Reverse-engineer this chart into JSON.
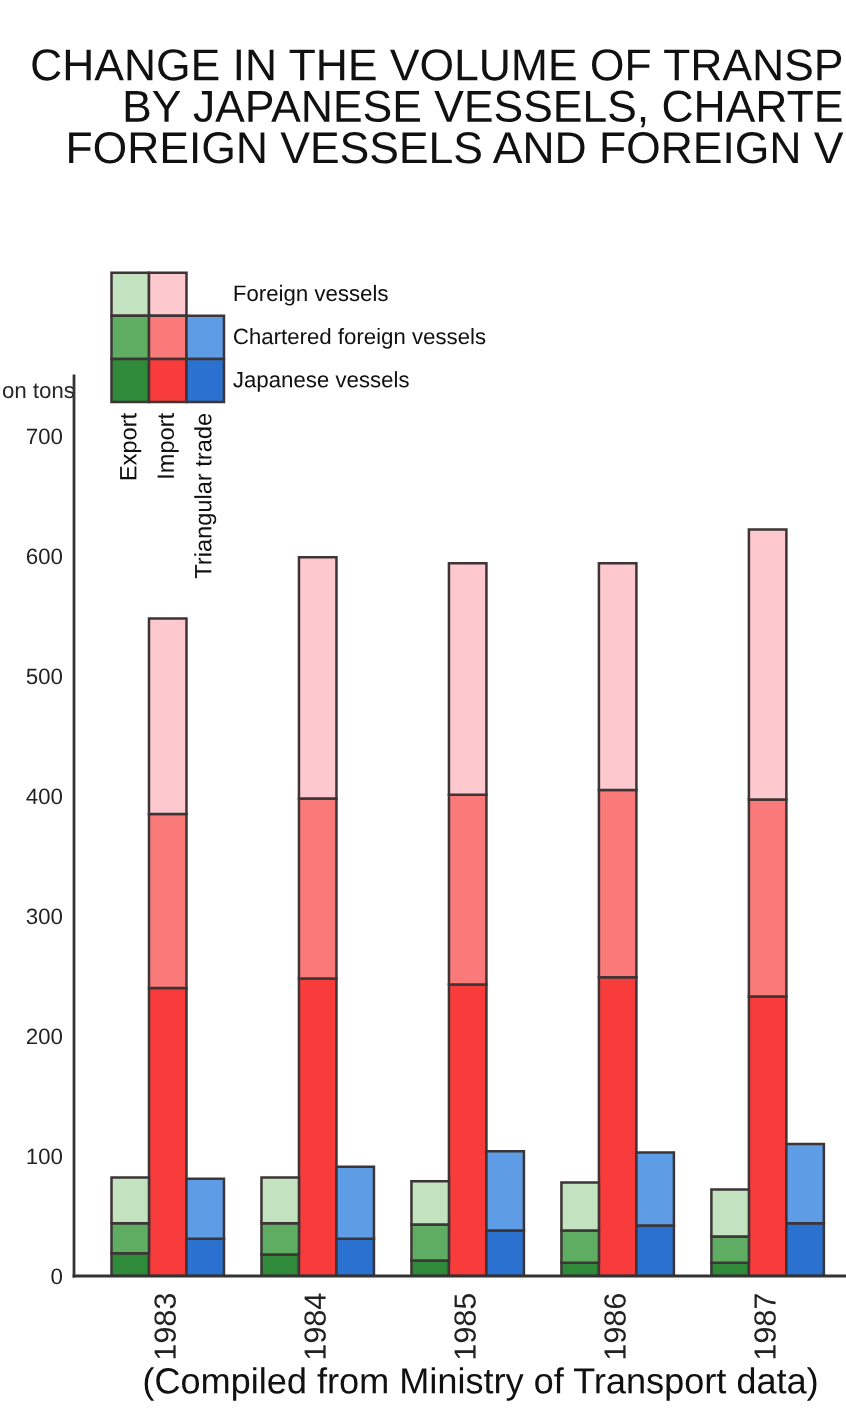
{
  "chart_data": {
    "type": "bar",
    "stacked": true,
    "title": "CHANGE IN THE VOLUME OF TRANSP\nBY JAPANESE VESSELS, CHARTE\nFOREIGN VESSELS AND FOREIGN V",
    "ylabel": "on tons",
    "categories": [
      null,
      null,
      "1983",
      null,
      null,
      null,
      "1984",
      null,
      null,
      null,
      "1985",
      null,
      null,
      null,
      "1986",
      null,
      null,
      null,
      "1987",
      null
    ],
    "series": [
      {
        "name": "Japanese vessels",
        "values": [
          null,
          19,
          240,
          31,
          null,
          18,
          248,
          31,
          null,
          13,
          243,
          38,
          null,
          11,
          249,
          42,
          null,
          11,
          233,
          44
        ],
        "colors": [
          null,
          "#2f8a3a",
          "#f83b3b",
          "#2b72d0",
          null,
          "#2f8a3a",
          "#f83b3b",
          "#2b72d0",
          null,
          "#2f8a3a",
          "#f83b3b",
          "#2b72d0",
          null,
          "#2f8a3a",
          "#f83b3b",
          "#2b72d0",
          null,
          "#2f8a3a",
          "#f83b3b",
          "#2b72d0"
        ]
      },
      {
        "name": "Chartered foreign vessels",
        "values": [
          null,
          25,
          145,
          50,
          null,
          26,
          150,
          60,
          null,
          30,
          158,
          66,
          null,
          27,
          156,
          61,
          null,
          22,
          164,
          66
        ],
        "colors": [
          null,
          "#5fad63",
          "#fa7a7a",
          "#5e9de6",
          null,
          "#5fad63",
          "#fa7a7a",
          "#5e9de6",
          null,
          "#5fad63",
          "#fa7a7a",
          "#5e9de6",
          null,
          "#5fad63",
          "#fa7a7a",
          "#5e9de6",
          null,
          "#5fad63",
          "#fa7a7a",
          "#5e9de6"
        ]
      },
      {
        "name": "Foreign vessels",
        "values": [
          null,
          38,
          163,
          null,
          null,
          38,
          201,
          null,
          null,
          36,
          193,
          null,
          null,
          40,
          189,
          null,
          null,
          39,
          225,
          null
        ],
        "colors": [
          null,
          "#c2e2c0",
          "#fdc9ce",
          null,
          null,
          "#c2e2c0",
          "#fdc9ce",
          null,
          null,
          "#c2e2c0",
          "#fdc9ce",
          null,
          null,
          "#c2e2c0",
          "#fdc9ce",
          null,
          null,
          "#c2e2c0",
          "#fdc9ce",
          null
        ]
      }
    ],
    "ylim": [
      0,
      750
    ],
    "yticks": [
      0,
      100,
      200,
      300,
      400,
      500,
      600,
      700
    ],
    "legend": "top left",
    "annotations": [
      "Export",
      "Import",
      "Triangular trade",
      "(Compiled from Ministry of Transport data)"
    ]
  }
}
